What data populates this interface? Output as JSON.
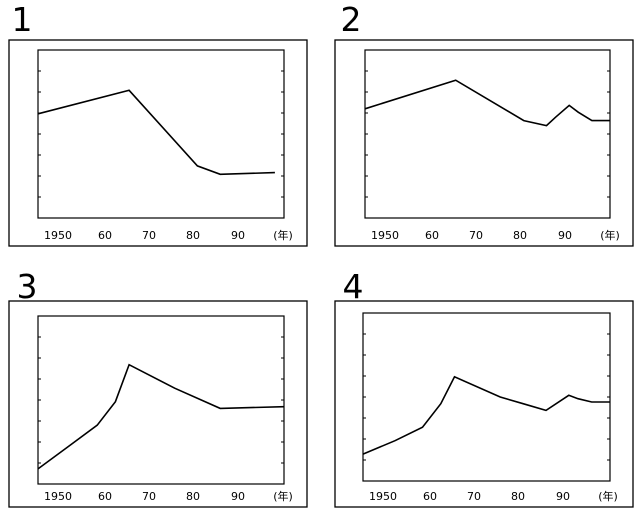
{
  "chart_data": [
    {
      "type": "line",
      "panel_label": "1",
      "x_ticks": [
        "1950",
        "60",
        "70",
        "80",
        "90",
        "(年)"
      ],
      "series": [
        {
          "x": [
            1945,
            1965,
            1980,
            1985,
            1997
          ],
          "y": [
            62,
            76,
            31,
            26,
            27
          ]
        }
      ],
      "xlim": [
        1945,
        1999
      ],
      "ylim": [
        0,
        100
      ]
    },
    {
      "type": "line",
      "panel_label": "2",
      "x_ticks": [
        "1950",
        "60",
        "70",
        "80",
        "90",
        "(年)"
      ],
      "series": [
        {
          "x": [
            1945,
            1965,
            1980,
            1985,
            1987,
            1990,
            1992,
            1995,
            1999
          ],
          "y": [
            65,
            82,
            58,
            55,
            60,
            67,
            63,
            58,
            58
          ]
        }
      ],
      "xlim": [
        1945,
        1999
      ],
      "ylim": [
        0,
        100
      ]
    },
    {
      "type": "line",
      "panel_label": "3",
      "x_ticks": [
        "1950",
        "60",
        "70",
        "80",
        "90",
        "(年)"
      ],
      "series": [
        {
          "x": [
            1945,
            1952,
            1958,
            1962,
            1965,
            1975,
            1985,
            1999
          ],
          "y": [
            9,
            23,
            35,
            49,
            71,
            57,
            45,
            46
          ]
        }
      ],
      "xlim": [
        1945,
        1999
      ],
      "ylim": [
        0,
        100
      ]
    },
    {
      "type": "line",
      "panel_label": "4",
      "x_ticks": [
        "1950",
        "60",
        "70",
        "80",
        "90",
        "(年)"
      ],
      "series": [
        {
          "x": [
            1945,
            1952,
            1958,
            1962,
            1965,
            1975,
            1980,
            1985,
            1990,
            1992,
            1995,
            1999
          ],
          "y": [
            16,
            24,
            32,
            46,
            62,
            50,
            46,
            42,
            51,
            49,
            47,
            47
          ]
        }
      ],
      "xlim": [
        1945,
        1999
      ],
      "ylim": [
        0,
        100
      ]
    }
  ]
}
